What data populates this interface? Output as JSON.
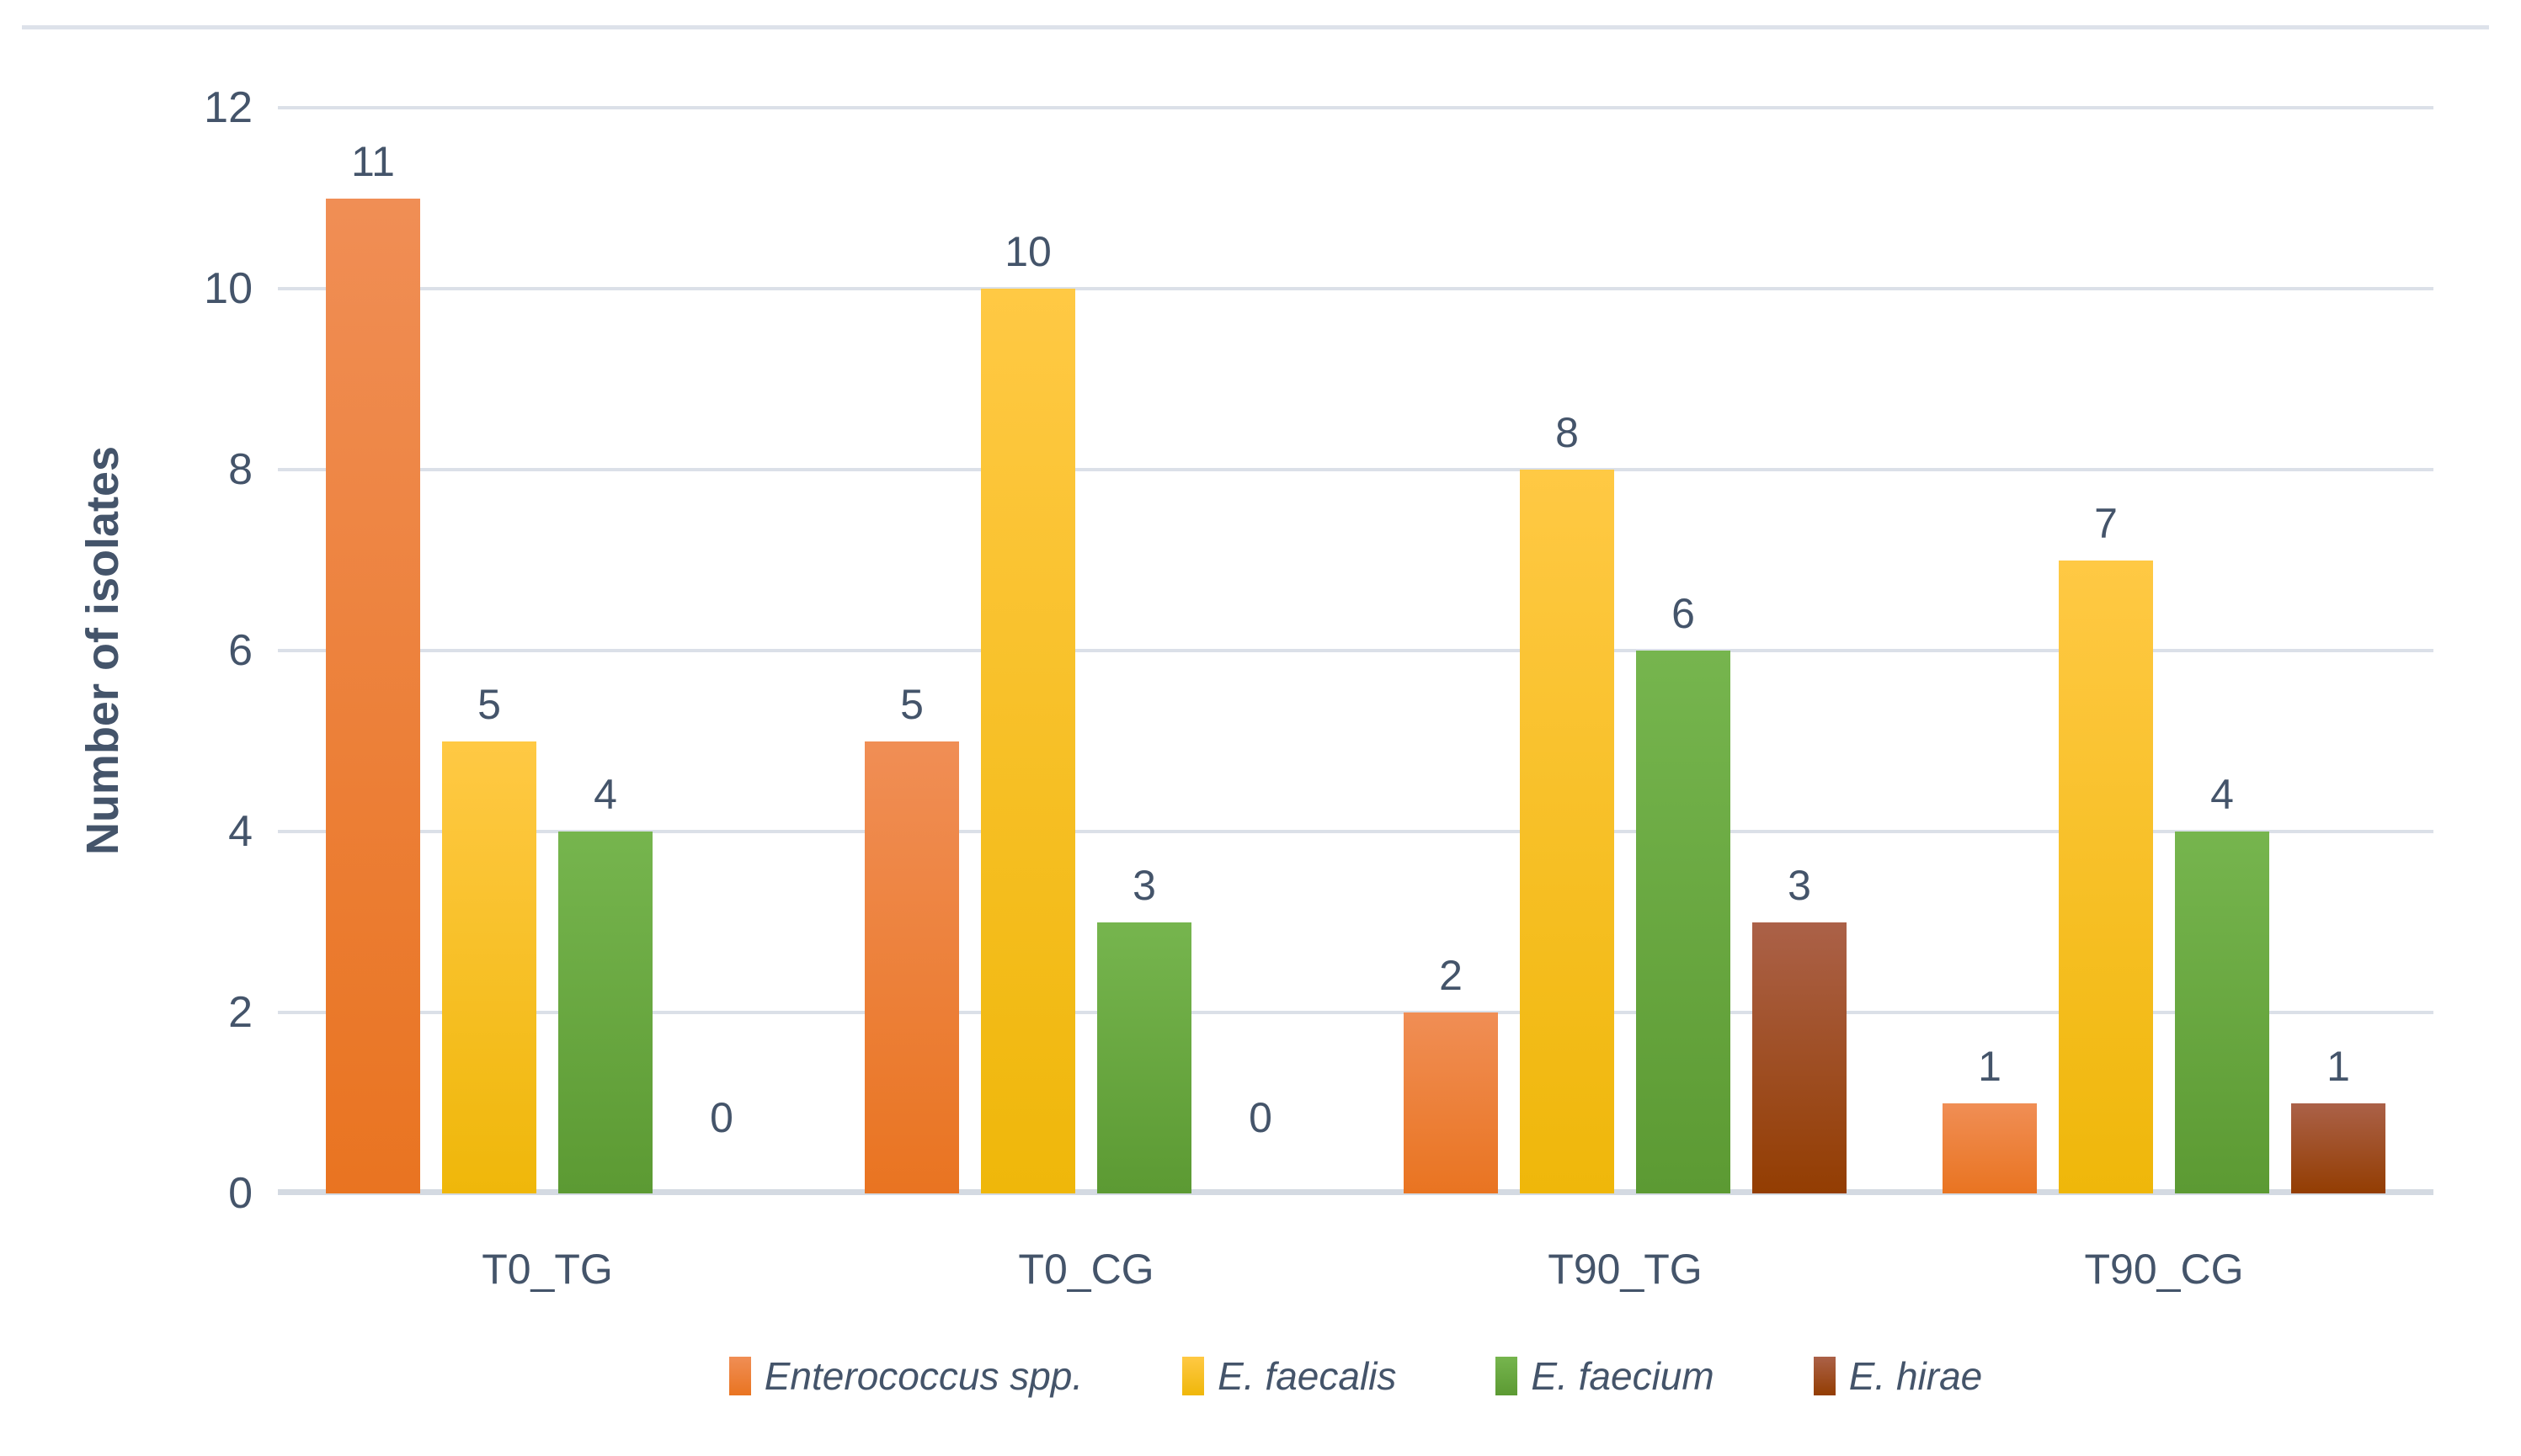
{
  "chart_data": {
    "type": "bar",
    "title": "",
    "ylabel": "Number of isolates",
    "xlabel": "",
    "categories": [
      "T0_TG",
      "T0_CG",
      "T90_TG",
      "T90_CG"
    ],
    "series": [
      {
        "name": "Enterococcus spp.",
        "values": [
          11,
          5,
          2,
          1
        ],
        "color_top": "#F08E55",
        "color_bottom": "#E97421"
      },
      {
        "name": "E. faecalis",
        "values": [
          5,
          10,
          8,
          7
        ],
        "color_top": "#FFC944",
        "color_bottom": "#EFB70A"
      },
      {
        "name": "E. faecium",
        "values": [
          4,
          3,
          6,
          4
        ],
        "color_top": "#76B54E",
        "color_bottom": "#5C9A33"
      },
      {
        "name": "E. hirae",
        "values": [
          0,
          0,
          3,
          1
        ],
        "color_top": "#AB6148",
        "color_bottom": "#933D02"
      }
    ],
    "ylim": [
      0,
      12
    ],
    "yticks": [
      0,
      2,
      4,
      6,
      8,
      10,
      12
    ],
    "grid": true,
    "data_labels": true,
    "legend_position": "bottom",
    "text_color": "#44546A",
    "gridline_color": "#DBE0E8",
    "axis_line_color": "#D4DAE2"
  }
}
